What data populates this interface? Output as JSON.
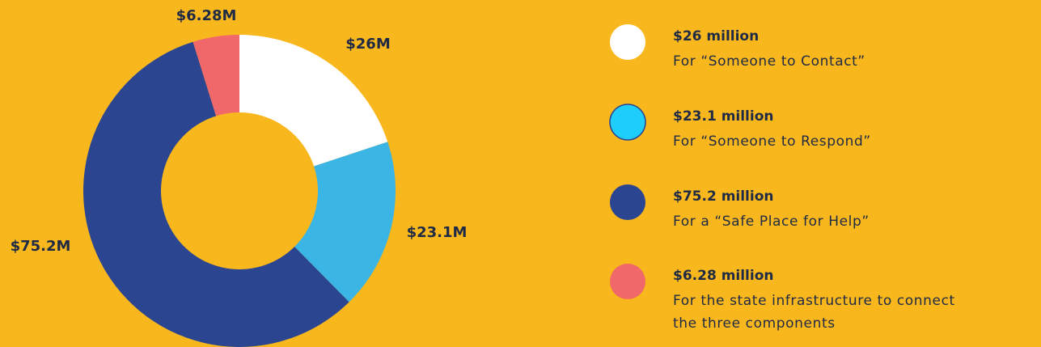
{
  "chart_data": {
    "type": "donut",
    "values": [
      26,
      23.1,
      75.2,
      6.28
    ],
    "value_labels": [
      "$26M",
      "$23.1M",
      "$75.2M",
      "$6.28M"
    ],
    "colors": [
      "#ffffff",
      "#3bb5e3",
      "#2b4590",
      "#f0686a"
    ],
    "legend": [
      {
        "title": "$26 million",
        "lines": [
          "For “Someone to Contact”"
        ],
        "color": "#ffffff"
      },
      {
        "title": "$23.1 million",
        "lines": [
          "For “Someone to Respond”"
        ],
        "color": "#1ecdfa"
      },
      {
        "title": "$75.2 million",
        "lines": [
          "For a “Safe Place for Help”"
        ],
        "color": "#2b4590"
      },
      {
        "title": "$6.28 million",
        "lines": [
          "For the state infrastructure to connect",
          "the three components"
        ],
        "color": "#f0686a"
      }
    ]
  }
}
